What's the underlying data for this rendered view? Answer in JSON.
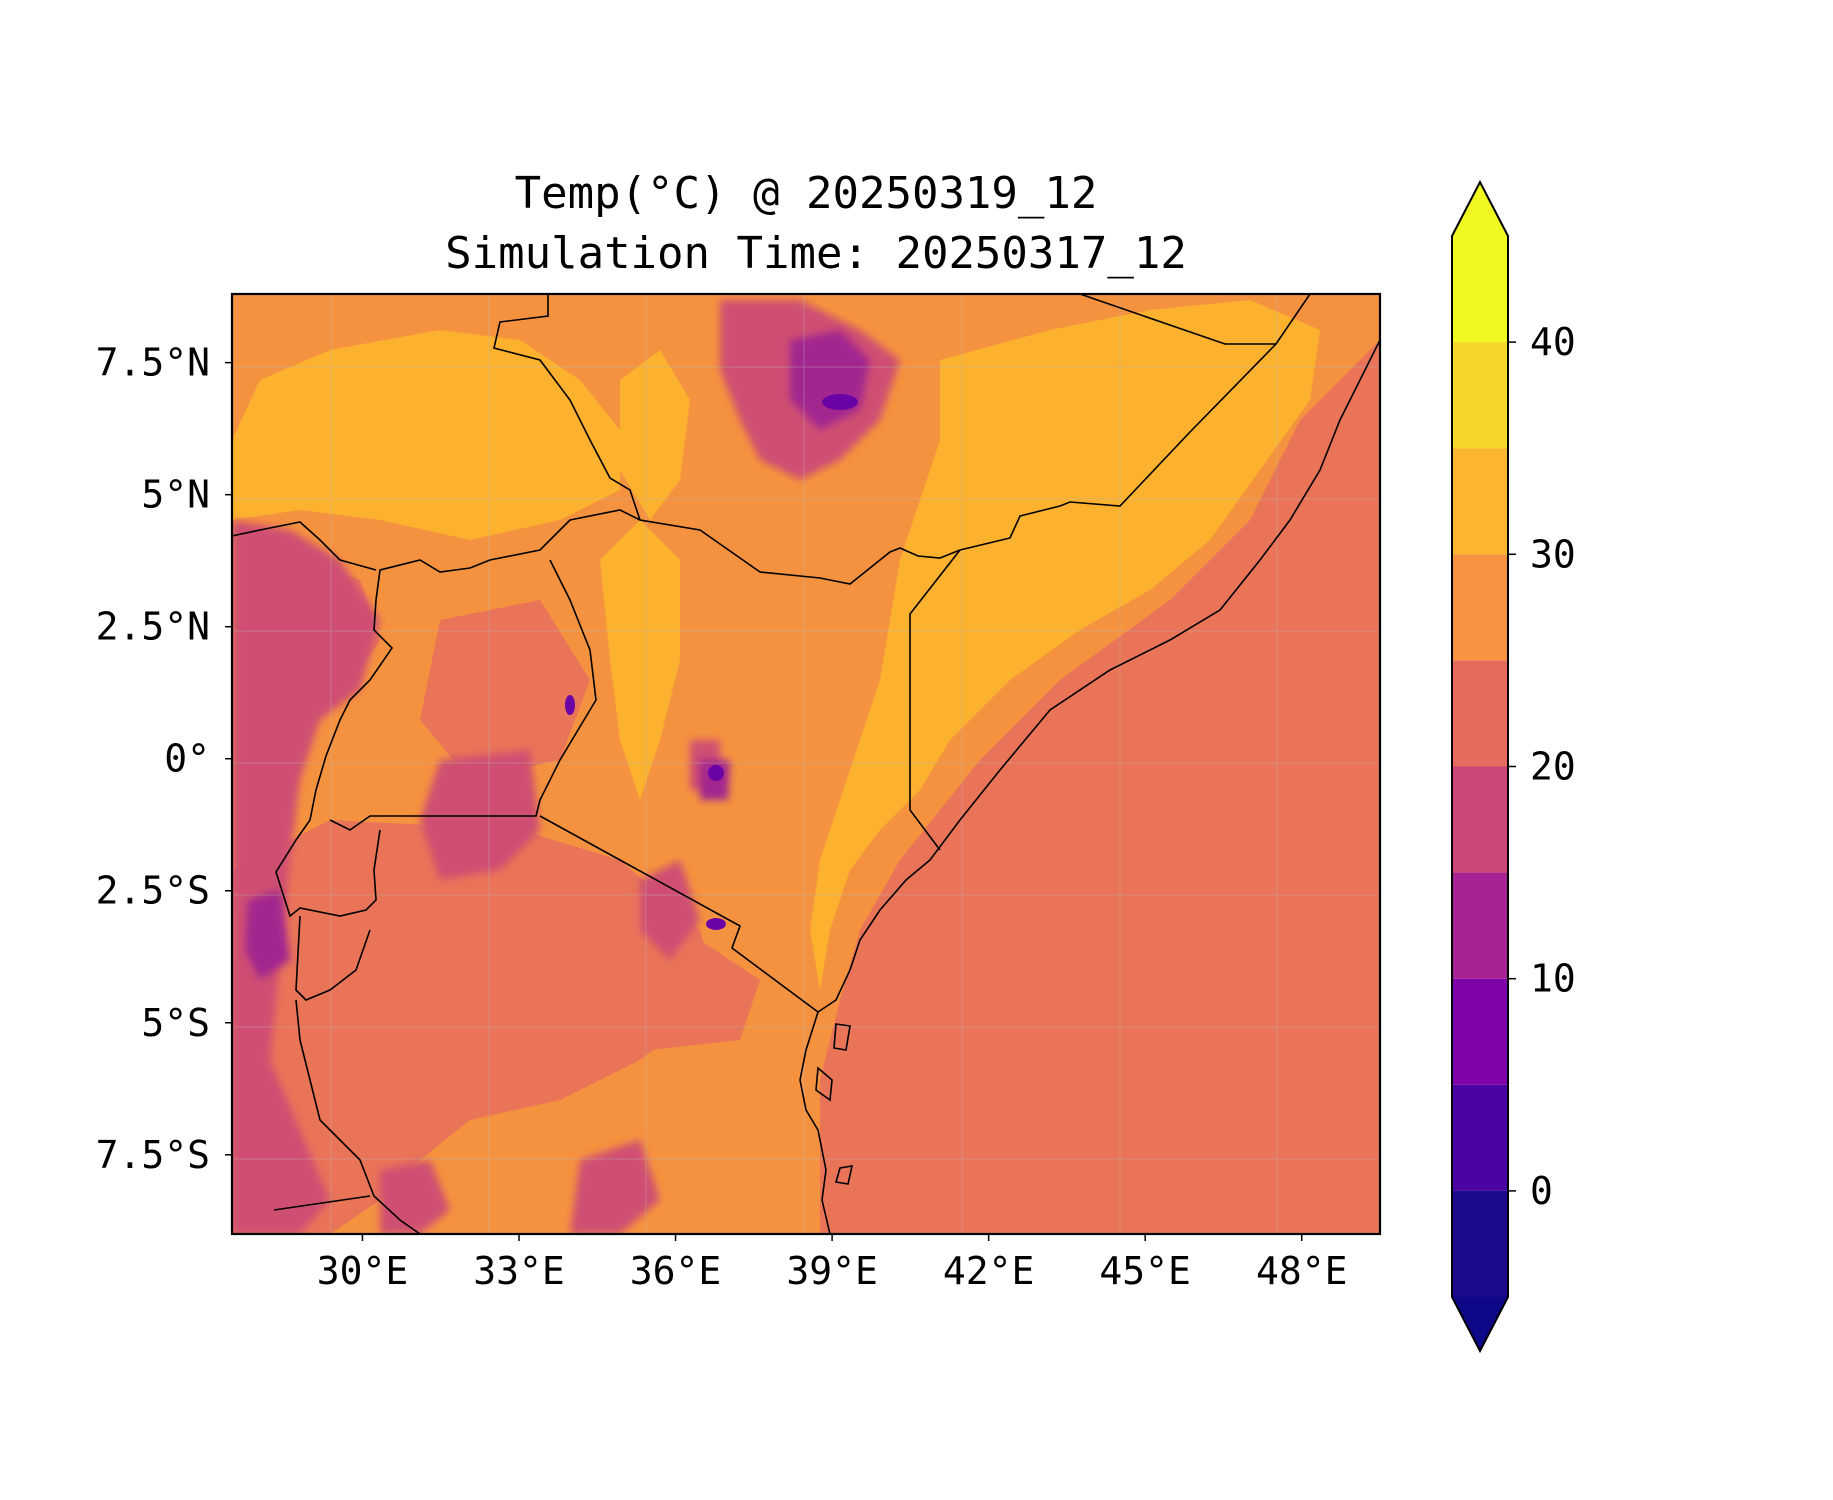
{
  "figure": {
    "title_line1": "Temp(°C) @ 20250319_12",
    "title_line2": "Simulation Time: 20250317_12"
  },
  "map": {
    "lon_range": [
      27.5,
      49.5
    ],
    "lat_range": [
      -9.0,
      8.8
    ],
    "x_ticks": [
      {
        "value": 30,
        "label": "30°E"
      },
      {
        "value": 33,
        "label": "33°E"
      },
      {
        "value": 36,
        "label": "36°E"
      },
      {
        "value": 39,
        "label": "39°E"
      },
      {
        "value": 42,
        "label": "42°E"
      },
      {
        "value": 45,
        "label": "45°E"
      },
      {
        "value": 48,
        "label": "48°E"
      }
    ],
    "y_ticks": [
      {
        "value": 7.5,
        "label": "7.5°N"
      },
      {
        "value": 5,
        "label": "5°N"
      },
      {
        "value": 2.5,
        "label": "2.5°N"
      },
      {
        "value": 0,
        "label": "0°"
      },
      {
        "value": -2.5,
        "label": "2.5°S"
      },
      {
        "value": -5,
        "label": "5°S"
      },
      {
        "value": -7.5,
        "label": "7.5°S"
      }
    ],
    "gridlines": true,
    "variable": "Temp(°C)"
  },
  "colorbar": {
    "extend": "both",
    "range": [
      -5,
      45
    ],
    "levels": [
      -5,
      0,
      5,
      10,
      15,
      20,
      25,
      30,
      35,
      40,
      45
    ],
    "colors": [
      "#1a0a8c",
      "#4b03a1",
      "#7d03a8",
      "#a82296",
      "#cb4679",
      "#e56b5d",
      "#f89441",
      "#fdb42f",
      "#f4d72a",
      "#f0f921"
    ],
    "under_color": "#0d0887",
    "over_color": "#f0f921",
    "ticks": [
      {
        "value": 0,
        "label": "0"
      },
      {
        "value": 10,
        "label": "10"
      },
      {
        "value": 20,
        "label": "20"
      },
      {
        "value": 30,
        "label": "30"
      },
      {
        "value": 40,
        "label": "40"
      }
    ]
  }
}
